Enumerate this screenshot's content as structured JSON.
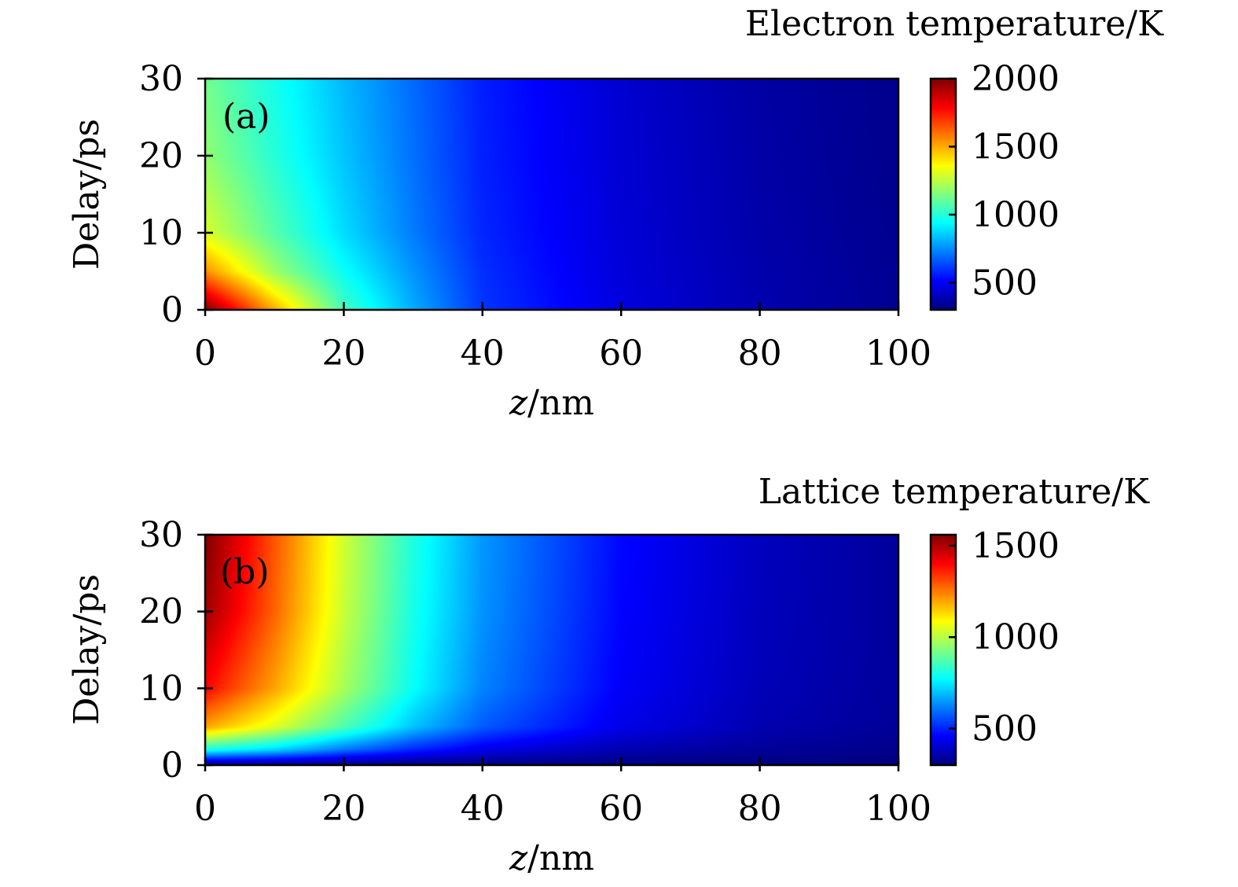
{
  "chart_data": [
    {
      "type": "heatmap",
      "panel_label": "(a)",
      "colorbar_title": "Electron temperature/K",
      "xlabel_var": "z",
      "xlabel_unit": "/nm",
      "ylabel": "Delay/ps",
      "xlim": [
        0,
        100
      ],
      "ylim": [
        0,
        30
      ],
      "xticks": [
        "0",
        "20",
        "40",
        "60",
        "80",
        "100"
      ],
      "yticks": [
        "0",
        "10",
        "20",
        "30"
      ],
      "colorbar_ticks": [
        "500",
        "1000",
        "1500",
        "2000"
      ],
      "colorbar_tick_values": [
        500,
        1000,
        1500,
        2000
      ],
      "colorbar_range": [
        300,
        2000
      ],
      "colormap": "jet",
      "field_samples": {
        "z_nm": [
          0,
          10,
          20,
          30,
          40,
          60,
          80,
          100
        ],
        "delay_ps": [
          0,
          5,
          10,
          20,
          30
        ],
        "temperature_K": [
          [
            2000,
            1500,
            1050,
            800,
            600,
            460,
            380,
            330
          ],
          [
            1550,
            1200,
            950,
            760,
            590,
            450,
            375,
            330
          ],
          [
            1300,
            1080,
            880,
            720,
            575,
            445,
            370,
            325
          ],
          [
            1180,
            1000,
            840,
            700,
            565,
            440,
            365,
            320
          ],
          [
            1130,
            970,
            820,
            690,
            560,
            435,
            360,
            320
          ]
        ]
      }
    },
    {
      "type": "heatmap",
      "panel_label": "(b)",
      "colorbar_title": "Lattice temperature/K",
      "xlabel_var": "z",
      "xlabel_unit": "/nm",
      "ylabel": "Delay/ps",
      "xlim": [
        0,
        100
      ],
      "ylim": [
        0,
        30
      ],
      "xticks": [
        "0",
        "20",
        "40",
        "60",
        "80",
        "100"
      ],
      "yticks": [
        "0",
        "10",
        "20",
        "30"
      ],
      "colorbar_ticks": [
        "500",
        "1000",
        "1500"
      ],
      "colorbar_tick_values": [
        500,
        1000,
        1500
      ],
      "colorbar_range": [
        300,
        1560
      ],
      "colormap": "jet",
      "field_samples": {
        "z_nm": [
          0,
          10,
          20,
          30,
          40,
          60,
          80,
          100
        ],
        "delay_ps": [
          0,
          2,
          5,
          10,
          20,
          30
        ],
        "temperature_K": [
          [
            300,
            300,
            300,
            300,
            300,
            300,
            300,
            300
          ],
          [
            800,
            720,
            600,
            500,
            430,
            360,
            330,
            315
          ],
          [
            1200,
            1050,
            870,
            700,
            570,
            430,
            360,
            330
          ],
          [
            1400,
            1200,
            980,
            780,
            620,
            450,
            370,
            335
          ],
          [
            1520,
            1280,
            1020,
            800,
            640,
            460,
            375,
            335
          ],
          [
            1560,
            1300,
            1030,
            810,
            645,
            465,
            378,
            335
          ]
        ]
      }
    }
  ]
}
